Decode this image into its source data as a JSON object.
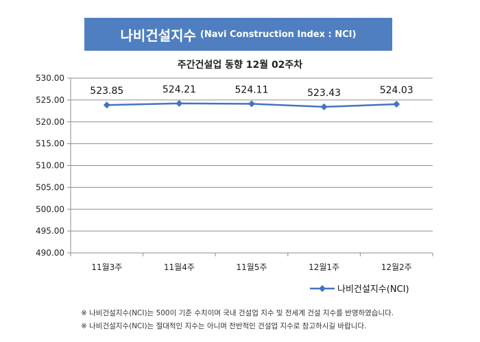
{
  "header": {
    "title_main": "나비건설지수",
    "title_sub": "(Navi Construction Index : NCI)"
  },
  "chart_data": {
    "type": "line",
    "title": "주간건설업 동향 12월 02주차",
    "categories": [
      "11월3주",
      "11월4주",
      "11월5주",
      "12월1주",
      "12월2주"
    ],
    "series": [
      {
        "name": "나비건설지수(NCI)",
        "values": [
          523.85,
          524.21,
          524.11,
          523.43,
          524.03
        ],
        "color": "#4472c4"
      }
    ],
    "data_labels": [
      "523.85",
      "524.21",
      "524.11",
      "523.43",
      "524.03"
    ],
    "y_ticks": [
      "530.00",
      "525.00",
      "520.00",
      "515.00",
      "510.00",
      "505.00",
      "500.00",
      "495.00",
      "490.00"
    ],
    "ylim": [
      490,
      530
    ],
    "grid": true,
    "legend_position": "bottom-right"
  },
  "notes": [
    "※ 나비건설지수(NCI)는 500이 기준 수치이며 국내 건설업 지수 및 전세계 건설 지수를 반영하였습니다.",
    "※ 나비건설지수(NCI)는 절대적인 지수는 아니며 전반적인 건설업 지수로 참고하시길 바랍니다."
  ]
}
